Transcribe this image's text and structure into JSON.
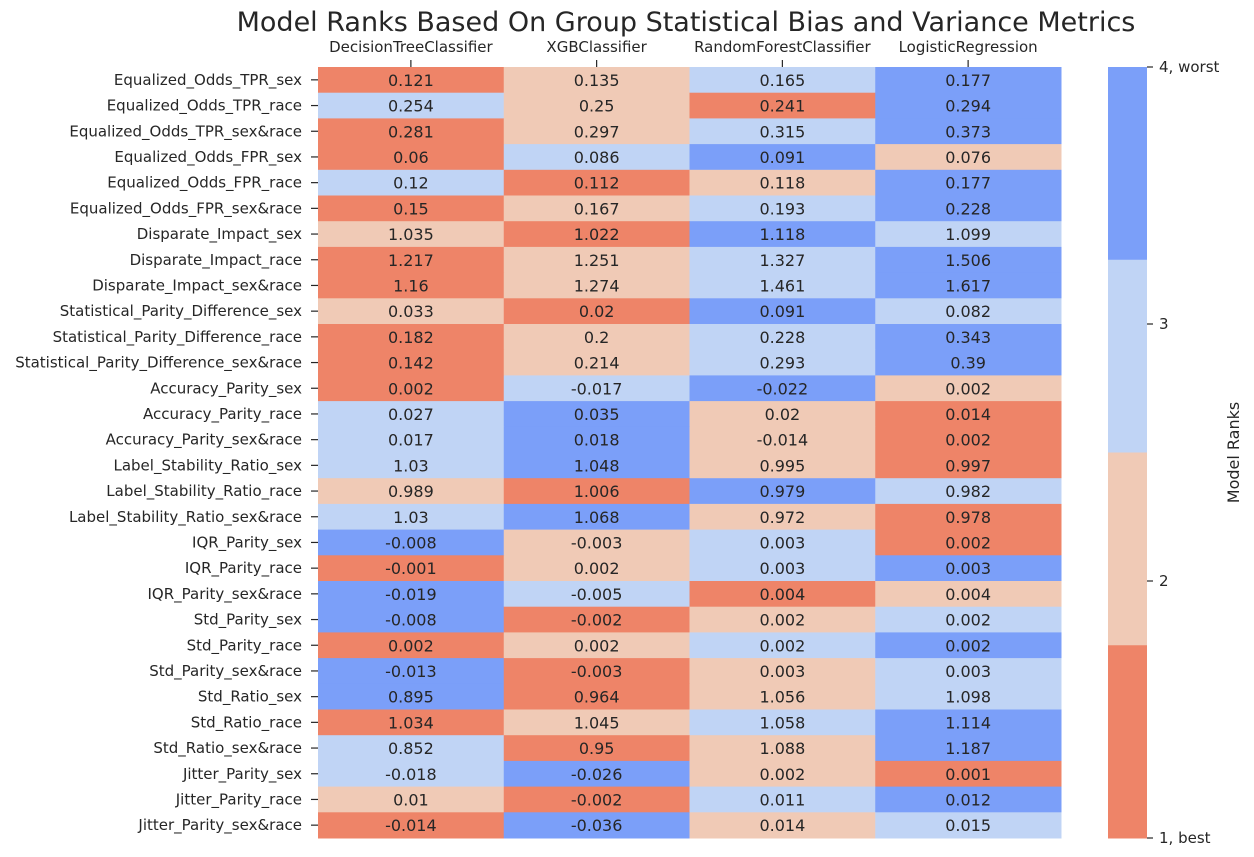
{
  "chart_data": {
    "type": "heatmap",
    "title": "Model Ranks Based On Group Statistical Bias and Variance Metrics",
    "columns": [
      "DecisionTreeClassifier",
      "XGBClassifier",
      "RandomForestClassifier",
      "LogisticRegression"
    ],
    "rows": [
      "Equalized_Odds_TPR_sex",
      "Equalized_Odds_TPR_race",
      "Equalized_Odds_TPR_sex&race",
      "Equalized_Odds_FPR_sex",
      "Equalized_Odds_FPR_race",
      "Equalized_Odds_FPR_sex&race",
      "Disparate_Impact_sex",
      "Disparate_Impact_race",
      "Disparate_Impact_sex&race",
      "Statistical_Parity_Difference_sex",
      "Statistical_Parity_Difference_race",
      "Statistical_Parity_Difference_sex&race",
      "Accuracy_Parity_sex",
      "Accuracy_Parity_race",
      "Accuracy_Parity_sex&race",
      "Label_Stability_Ratio_sex",
      "Label_Stability_Ratio_race",
      "Label_Stability_Ratio_sex&race",
      "IQR_Parity_sex",
      "IQR_Parity_race",
      "IQR_Parity_sex&race",
      "Std_Parity_sex",
      "Std_Parity_race",
      "Std_Parity_sex&race",
      "Std_Ratio_sex",
      "Std_Ratio_race",
      "Std_Ratio_sex&race",
      "Jitter_Parity_sex",
      "Jitter_Parity_race",
      "Jitter_Parity_sex&race"
    ],
    "values": [
      [
        "0.121",
        "0.135",
        "0.165",
        "0.177"
      ],
      [
        "0.254",
        "0.25",
        "0.241",
        "0.294"
      ],
      [
        "0.281",
        "0.297",
        "0.315",
        "0.373"
      ],
      [
        "0.06",
        "0.086",
        "0.091",
        "0.076"
      ],
      [
        "0.12",
        "0.112",
        "0.118",
        "0.177"
      ],
      [
        "0.15",
        "0.167",
        "0.193",
        "0.228"
      ],
      [
        "1.035",
        "1.022",
        "1.118",
        "1.099"
      ],
      [
        "1.217",
        "1.251",
        "1.327",
        "1.506"
      ],
      [
        "1.16",
        "1.274",
        "1.461",
        "1.617"
      ],
      [
        "0.033",
        "0.02",
        "0.091",
        "0.082"
      ],
      [
        "0.182",
        "0.2",
        "0.228",
        "0.343"
      ],
      [
        "0.142",
        "0.214",
        "0.293",
        "0.39"
      ],
      [
        "0.002",
        "-0.017",
        "-0.022",
        "0.002"
      ],
      [
        "0.027",
        "0.035",
        "0.02",
        "0.014"
      ],
      [
        "0.017",
        "0.018",
        "-0.014",
        "0.002"
      ],
      [
        "1.03",
        "1.048",
        "0.995",
        "0.997"
      ],
      [
        "0.989",
        "1.006",
        "0.979",
        "0.982"
      ],
      [
        "1.03",
        "1.068",
        "0.972",
        "0.978"
      ],
      [
        "-0.008",
        "-0.003",
        "0.003",
        "0.002"
      ],
      [
        "-0.001",
        "0.002",
        "0.003",
        "0.003"
      ],
      [
        "-0.019",
        "-0.005",
        "0.004",
        "0.004"
      ],
      [
        "-0.008",
        "-0.002",
        "0.002",
        "0.002"
      ],
      [
        "0.002",
        "0.002",
        "0.002",
        "0.002"
      ],
      [
        "-0.013",
        "-0.003",
        "0.003",
        "0.003"
      ],
      [
        "0.895",
        "0.964",
        "1.056",
        "1.098"
      ],
      [
        "1.034",
        "1.045",
        "1.058",
        "1.114"
      ],
      [
        "0.852",
        "0.95",
        "1.088",
        "1.187"
      ],
      [
        "-0.018",
        "-0.026",
        "0.002",
        "0.001"
      ],
      [
        "0.01",
        "-0.002",
        "0.011",
        "0.012"
      ],
      [
        "-0.014",
        "-0.036",
        "0.014",
        "0.015"
      ]
    ],
    "ranks": [
      [
        1,
        2,
        3,
        4
      ],
      [
        3,
        2,
        1,
        4
      ],
      [
        1,
        2,
        3,
        4
      ],
      [
        1,
        3,
        4,
        2
      ],
      [
        3,
        1,
        2,
        4
      ],
      [
        1,
        2,
        3,
        4
      ],
      [
        2,
        1,
        4,
        3
      ],
      [
        1,
        2,
        3,
        4
      ],
      [
        1,
        2,
        3,
        4
      ],
      [
        2,
        1,
        4,
        3
      ],
      [
        1,
        2,
        3,
        4
      ],
      [
        1,
        2,
        3,
        4
      ],
      [
        1,
        3,
        4,
        2
      ],
      [
        3,
        4,
        2,
        1
      ],
      [
        3,
        4,
        2,
        1
      ],
      [
        3,
        4,
        2,
        1
      ],
      [
        2,
        1,
        4,
        3
      ],
      [
        3,
        4,
        2,
        1
      ],
      [
        4,
        2,
        3,
        1
      ],
      [
        1,
        2,
        3,
        4
      ],
      [
        4,
        3,
        1,
        2
      ],
      [
        4,
        1,
        2,
        3
      ],
      [
        1,
        2,
        3,
        4
      ],
      [
        4,
        1,
        2,
        3
      ],
      [
        4,
        1,
        2,
        3
      ],
      [
        1,
        2,
        3,
        4
      ],
      [
        3,
        1,
        2,
        4
      ],
      [
        3,
        4,
        2,
        1
      ],
      [
        2,
        1,
        3,
        4
      ],
      [
        1,
        4,
        2,
        3
      ]
    ],
    "rank_colors": {
      "1": "#ee8468",
      "2": "#f0cab6",
      "3": "#c0d4f5",
      "4": "#7b9ff9"
    },
    "colorbar": {
      "label": "Model Ranks",
      "ticks": [
        {
          "value": 4,
          "label": "4, worst"
        },
        {
          "value": 3,
          "label": "3"
        },
        {
          "value": 2,
          "label": "2"
        },
        {
          "value": 1,
          "label": "1, best"
        }
      ],
      "range": [
        1,
        4
      ]
    }
  }
}
